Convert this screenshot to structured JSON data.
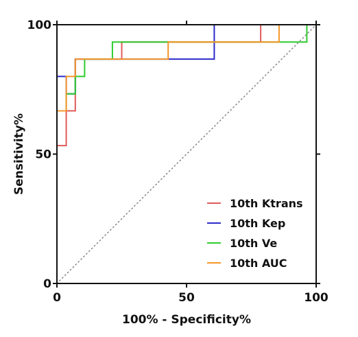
{
  "chart_data": {
    "type": "line",
    "title": "",
    "xlabel": "100% - Specificity%",
    "ylabel": "Sensitivity%",
    "xlim": [
      0,
      100
    ],
    "ylim": [
      0,
      100
    ],
    "xticks": [
      "0",
      "50",
      "100"
    ],
    "yticks": [
      "0",
      "50",
      "100"
    ],
    "grid": false,
    "legend_position": "bottom-right",
    "reference_line": {
      "style": "dotted",
      "color": "#888888",
      "x": [
        0,
        100
      ],
      "y": [
        0,
        100
      ]
    },
    "series": [
      {
        "name": "10th Ktrans",
        "color": "#e05a5a",
        "x": [
          0,
          0,
          3.6,
          3.6,
          7.1,
          7.1,
          25,
          25,
          78.6,
          78.6,
          100
        ],
        "y": [
          0,
          53.3,
          53.3,
          66.7,
          66.7,
          86.7,
          86.7,
          93.3,
          93.3,
          100,
          100
        ]
      },
      {
        "name": "10th Kep",
        "color": "#2b2bcc",
        "x": [
          0,
          0,
          3.6,
          3.6,
          7.1,
          7.1,
          60.7,
          60.7,
          100
        ],
        "y": [
          0,
          80,
          80,
          73.3,
          73.3,
          86.7,
          86.7,
          100,
          100
        ]
      },
      {
        "name": "10th Ve",
        "color": "#2ecc2e",
        "x": [
          0,
          0,
          3.6,
          3.6,
          7.1,
          7.1,
          10.7,
          10.7,
          21.4,
          21.4,
          96.4,
          96.4,
          100
        ],
        "y": [
          0,
          66.7,
          66.7,
          73.3,
          73.3,
          80,
          80,
          86.7,
          86.7,
          93.3,
          93.3,
          100,
          100
        ]
      },
      {
        "name": "10th AUC",
        "color": "#f5962a",
        "x": [
          0,
          0,
          3.6,
          3.6,
          7.1,
          7.1,
          42.9,
          42.9,
          85.7,
          85.7,
          100
        ],
        "y": [
          0,
          66.7,
          66.7,
          80,
          80,
          86.7,
          86.7,
          93.3,
          93.3,
          100,
          100
        ]
      }
    ]
  }
}
